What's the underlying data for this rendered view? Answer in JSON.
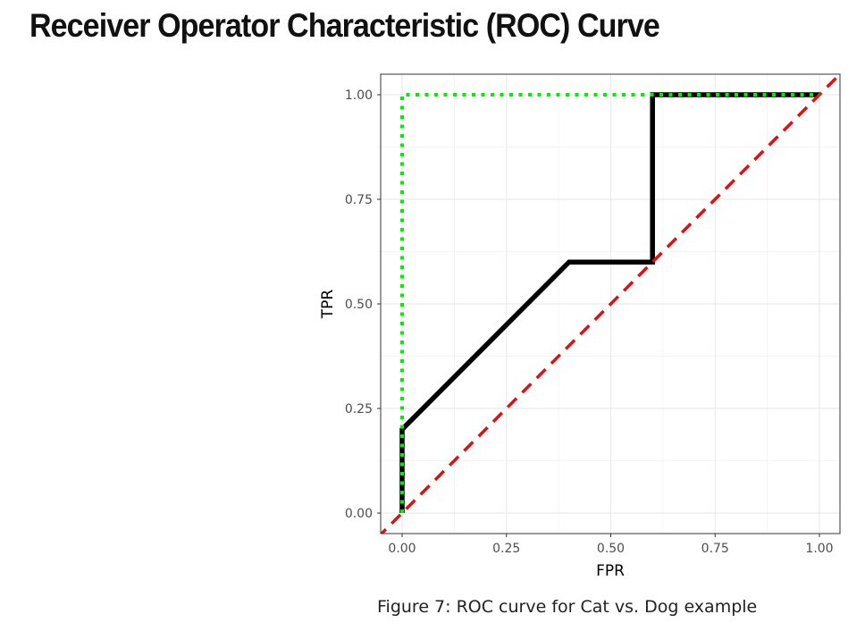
{
  "page": {
    "title": "Receiver Operator Characteristic (ROC) Curve",
    "caption": "Figure 7: ROC curve for Cat vs. Dog example"
  },
  "chart_data": {
    "type": "line",
    "title": "",
    "xlabel": "FPR",
    "ylabel": "TPR",
    "xlim": [
      0,
      1
    ],
    "ylim": [
      0,
      1
    ],
    "x_ticks": [
      "0.00",
      "0.25",
      "0.50",
      "0.75",
      "1.00"
    ],
    "y_ticks": [
      "0.00",
      "0.25",
      "0.50",
      "0.75",
      "1.00"
    ],
    "grid": true,
    "legend": "none",
    "series": [
      {
        "style": "dotted",
        "color": "#00ee00",
        "x": [
          0,
          0,
          1
        ],
        "y": [
          0,
          1,
          1
        ]
      },
      {
        "style": "dashed",
        "color": "#dd1111",
        "x": [
          0,
          1
        ],
        "y": [
          0,
          1
        ]
      },
      {
        "style": "solid",
        "color": "#000000",
        "x": [
          0,
          0,
          0.4,
          0.6,
          0.6,
          1
        ],
        "y": [
          0,
          0.2,
          0.6,
          0.6,
          1,
          1
        ]
      }
    ]
  }
}
